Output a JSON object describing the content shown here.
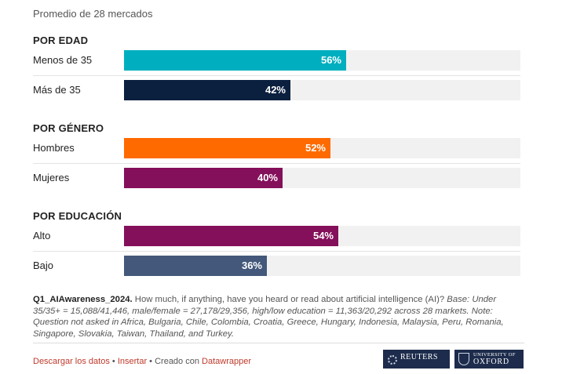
{
  "subtitle": "Promedio de 28 mercados",
  "chart_data": {
    "type": "bar",
    "orientation": "horizontal",
    "title": "Promedio de 28 mercados",
    "xlim": [
      0,
      100
    ],
    "unit": "%",
    "groups": [
      {
        "title": "POR EDAD",
        "rows": [
          {
            "label": "Menos de 35",
            "value": 56,
            "display": "56%",
            "color": "#00afbf"
          },
          {
            "label": "Más de 35",
            "value": 42,
            "display": "42%",
            "color": "#0b1f3f"
          }
        ]
      },
      {
        "title": "POR GÉNERO",
        "rows": [
          {
            "label": "Hombres",
            "value": 52,
            "display": "52%",
            "color": "#ff6a00"
          },
          {
            "label": "Mujeres",
            "value": 40,
            "display": "40%",
            "color": "#840f5a"
          }
        ]
      },
      {
        "title": "POR EDUCACIÓN",
        "rows": [
          {
            "label": "Alto",
            "value": 54,
            "display": "54%",
            "color": "#840f5a"
          },
          {
            "label": "Bajo",
            "value": 36,
            "display": "36%",
            "color": "#43587a"
          }
        ]
      }
    ]
  },
  "note": {
    "question_id": "Q1_AIAwareness_2024.",
    "question": "How much, if anything, have you heard or read about artificial intelligence (AI)?",
    "base": "Base: Under 35/35+ = 15,088/41,446, male/female = 27,178/29,356, high/low education = 11,363/20,292 across 28 markets. Note: Question not asked in Africa, Bulgaria, Chile, Colombia, Croatia, Greece, Hungary, Indonesia, Malaysia, Peru, Romania, Singapore, Slovakia, Taiwan, Thailand, and Turkey."
  },
  "footer": {
    "download": "Descargar los datos",
    "embed": "Insertar",
    "created_with": "Creado con",
    "datawrapper": "Datawrapper",
    "logo_reuters": "REUTERS",
    "logo_oxford_small": "UNIVERSITY OF",
    "logo_oxford_big": "OXFORD"
  }
}
